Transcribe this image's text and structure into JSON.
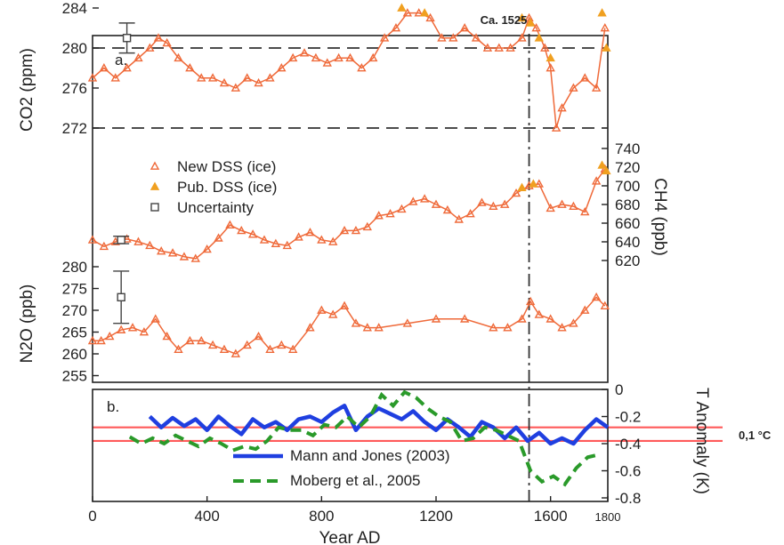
{
  "figure": {
    "annotation_top": "Ca. 1525",
    "annotation_right": "0,1 °C",
    "xlabel": "Year AD",
    "x_ticks": [
      "0",
      "400",
      "800",
      "1200",
      "1600",
      "1800"
    ],
    "panel_a_label": "a.",
    "panel_b_label": "b.",
    "colors": {
      "ice": "#ef6a3a",
      "ice_pub": "#f0a020",
      "mann": "#1f3fe0",
      "moberg": "#2a9a2a",
      "redband": "#ff5a5a",
      "axis": "#222222"
    }
  },
  "chart_data": [
    {
      "type": "line",
      "panel": "CO2",
      "ylabel": "CO2 (ppm)",
      "yticks": [
        "284",
        "280",
        "276",
        "272"
      ],
      "ylim": [
        270,
        286
      ],
      "xlim": [
        0,
        1800
      ],
      "reference_lines": [
        280,
        272
      ],
      "vertical_line_x": 1525,
      "legend": {
        "new": "New DSS (ice)",
        "pub": "Pub. DSS (ice)",
        "unc": "Uncertainty"
      },
      "series": [
        {
          "name": "New DSS (ice)",
          "x": [
            0,
            40,
            80,
            120,
            160,
            200,
            230,
            260,
            300,
            340,
            380,
            420,
            460,
            500,
            540,
            580,
            620,
            660,
            700,
            740,
            780,
            820,
            860,
            900,
            940,
            980,
            1020,
            1060,
            1100,
            1140,
            1180,
            1220,
            1260,
            1300,
            1340,
            1380,
            1420,
            1460,
            1500,
            1525,
            1550,
            1580,
            1600,
            1620,
            1640,
            1680,
            1720,
            1760,
            1790
          ],
          "y": [
            277,
            278,
            277,
            278,
            279,
            280,
            281,
            280.5,
            279,
            278,
            277,
            277,
            276.5,
            276,
            277,
            276.5,
            277,
            278,
            279,
            279.5,
            279,
            278.5,
            279,
            279,
            278,
            279,
            281,
            282,
            283.5,
            283.5,
            283,
            281,
            281,
            282,
            281,
            280,
            280,
            280,
            281,
            283,
            282,
            280,
            278,
            272,
            274,
            276,
            277,
            276,
            282
          ]
        },
        {
          "name": "Pub. DSS (ice)",
          "x": [
            1080,
            1160,
            1500,
            1530,
            1560,
            1600,
            1780,
            1795
          ],
          "y": [
            284,
            283.5,
            283,
            282.5,
            281,
            279,
            283.5,
            280
          ]
        }
      ]
    },
    {
      "type": "line",
      "panel": "CH4",
      "ylabel": "CH4 (ppb)",
      "yticks": [
        "740",
        "720",
        "700",
        "680",
        "660",
        "640",
        "620"
      ],
      "ylim": [
        610,
        750
      ],
      "series": [
        {
          "name": "New DSS (ice)",
          "x": [
            0,
            40,
            80,
            120,
            160,
            200,
            240,
            280,
            320,
            360,
            400,
            440,
            480,
            520,
            560,
            600,
            640,
            680,
            720,
            760,
            800,
            840,
            880,
            920,
            960,
            1000,
            1040,
            1080,
            1120,
            1160,
            1200,
            1240,
            1280,
            1320,
            1360,
            1400,
            1440,
            1480,
            1525,
            1560,
            1600,
            1640,
            1680,
            1720,
            1760,
            1790
          ],
          "y": [
            642,
            635,
            640,
            643,
            640,
            636,
            630,
            628,
            624,
            622,
            632,
            644,
            658,
            652,
            648,
            642,
            638,
            636,
            645,
            650,
            642,
            640,
            652,
            652,
            656,
            668,
            670,
            675,
            683,
            686,
            680,
            674,
            664,
            670,
            682,
            678,
            680,
            692,
            700,
            702,
            676,
            680,
            678,
            672,
            705,
            718
          ]
        },
        {
          "name": "Pub. DSS (ice)",
          "x": [
            1500,
            1540,
            1780,
            1795
          ],
          "y": [
            698,
            702,
            722,
            716
          ]
        }
      ]
    },
    {
      "type": "line",
      "panel": "N2O",
      "ylabel": "N2O (ppb)",
      "yticks": [
        "280",
        "275",
        "270",
        "265",
        "260",
        "255"
      ],
      "ylim": [
        254,
        281
      ],
      "uncertainty": {
        "x": 100,
        "y": 273,
        "low": 267,
        "high": 279
      },
      "series": [
        {
          "name": "New DSS (ice)",
          "x": [
            0,
            30,
            60,
            100,
            140,
            180,
            220,
            260,
            300,
            340,
            380,
            420,
            460,
            500,
            540,
            580,
            620,
            660,
            700,
            760,
            800,
            840,
            880,
            920,
            960,
            1000,
            1100,
            1200,
            1300,
            1400,
            1450,
            1500,
            1530,
            1560,
            1600,
            1640,
            1680,
            1720,
            1760,
            1790
          ],
          "y": [
            263,
            263,
            264,
            265.5,
            266,
            265,
            268,
            264,
            261,
            263,
            263,
            262,
            261,
            260,
            262,
            264,
            261,
            262,
            261,
            266,
            270,
            269,
            271,
            267,
            266,
            266,
            267,
            268,
            268,
            266,
            266,
            268,
            272,
            269,
            268,
            266,
            267,
            270,
            273,
            271
          ]
        }
      ]
    },
    {
      "type": "line",
      "panel": "T",
      "ylabel": "T Anomaly (K)",
      "yticks": [
        "0",
        "-0.2",
        "-0.4",
        "-0.6",
        "-0.8"
      ],
      "ylim": [
        -0.82,
        0.02
      ],
      "band": [
        -0.28,
        -0.38
      ],
      "series": [
        {
          "name": "Mann and Jones (2003)",
          "x": [
            200,
            240,
            280,
            320,
            360,
            400,
            440,
            480,
            520,
            560,
            600,
            640,
            680,
            720,
            760,
            800,
            840,
            880,
            920,
            960,
            1000,
            1040,
            1080,
            1120,
            1160,
            1200,
            1240,
            1280,
            1320,
            1360,
            1400,
            1440,
            1480,
            1520,
            1560,
            1600,
            1640,
            1680,
            1720,
            1760,
            1800
          ],
          "y": [
            -0.2,
            -0.28,
            -0.21,
            -0.27,
            -0.22,
            -0.3,
            -0.2,
            -0.27,
            -0.33,
            -0.22,
            -0.28,
            -0.24,
            -0.3,
            -0.22,
            -0.2,
            -0.24,
            -0.17,
            -0.12,
            -0.3,
            -0.2,
            -0.14,
            -0.18,
            -0.22,
            -0.16,
            -0.24,
            -0.3,
            -0.22,
            -0.28,
            -0.35,
            -0.24,
            -0.28,
            -0.36,
            -0.28,
            -0.38,
            -0.32,
            -0.4,
            -0.36,
            -0.4,
            -0.3,
            -0.22,
            -0.28
          ]
        },
        {
          "name": "Moberg et al., 2005",
          "x": [
            130,
            170,
            210,
            250,
            290,
            330,
            370,
            410,
            450,
            490,
            530,
            570,
            610,
            650,
            690,
            730,
            770,
            810,
            850,
            890,
            930,
            970,
            1010,
            1050,
            1090,
            1130,
            1170,
            1210,
            1250,
            1290,
            1330,
            1370,
            1410,
            1450,
            1490,
            1530,
            1570,
            1610,
            1650,
            1690,
            1730,
            1770
          ],
          "y": [
            -0.35,
            -0.4,
            -0.36,
            -0.4,
            -0.34,
            -0.38,
            -0.42,
            -0.36,
            -0.4,
            -0.45,
            -0.42,
            -0.44,
            -0.38,
            -0.28,
            -0.3,
            -0.3,
            -0.34,
            -0.26,
            -0.28,
            -0.2,
            -0.28,
            -0.2,
            -0.04,
            -0.12,
            -0.02,
            -0.06,
            -0.14,
            -0.2,
            -0.24,
            -0.38,
            -0.36,
            -0.28,
            -0.3,
            -0.34,
            -0.38,
            -0.6,
            -0.68,
            -0.64,
            -0.7,
            -0.58,
            -0.5,
            -0.48
          ]
        }
      ]
    }
  ]
}
